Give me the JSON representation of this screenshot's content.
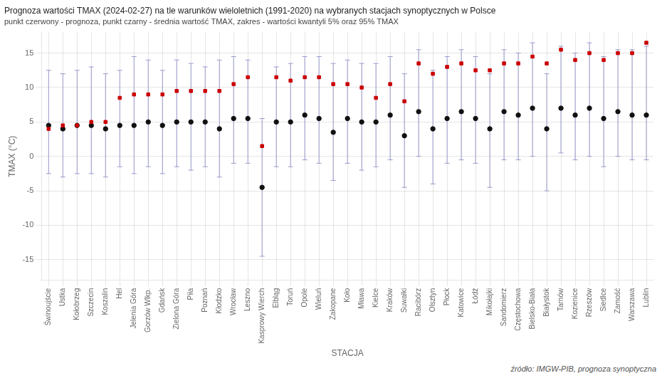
{
  "chart_data": {
    "type": "scatter",
    "title": "Prognoza wartości TMAX (2024-02-27) na tle warunków wieloletnich (1991-2020) na wybranych stacjach synoptycznych w Polsce",
    "subtitle": "punkt czerwony - prognoza, punkt czarny - średnia wartość TMAX, zakres - wartości kwantyli 5% oraz 95% TMAX",
    "xlabel": "STACJA",
    "ylabel": "TMAX (°C)",
    "source": "źródło: IMGW-PIB, prognoza synoptyczna",
    "categories": [
      "Świnoujście",
      "Ustka",
      "Kołobrzeg",
      "Szczecin",
      "Koszalin",
      "Hel",
      "Jelenia Góra",
      "Gorzów Wlkp.",
      "Gdańsk",
      "Zielona Góra",
      "Piła",
      "Poznań",
      "Kłodzko",
      "Wrocław",
      "Leszno",
      "Kasprowy Wierch",
      "Elbląg",
      "Toruń",
      "Opole",
      "Wieluń",
      "Zakopane",
      "Koło",
      "Mława",
      "Kielce",
      "Kraków",
      "Suwałki",
      "Racibórz",
      "Olsztyn",
      "Płock",
      "Katowice",
      "Łódź",
      "Mikołajki",
      "Sandomierz",
      "Częstochowa",
      "Bielsko-Biała",
      "Białystok",
      "Tarnów",
      "Kozienice",
      "Rzeszów",
      "Siedlce",
      "Zamość",
      "Warszawa",
      "Lublin"
    ],
    "series": [
      {
        "color": "#111111",
        "marker": "circle",
        "values": [
          4.5,
          4.0,
          4.5,
          4.5,
          4.0,
          4.5,
          4.5,
          5.0,
          4.5,
          5.0,
          5.0,
          5.0,
          4.0,
          5.5,
          5.5,
          -4.5,
          5.0,
          5.0,
          6.0,
          5.5,
          3.5,
          5.5,
          5.0,
          5.0,
          6.0,
          3.0,
          6.5,
          4.0,
          5.5,
          6.5,
          5.5,
          4.0,
          6.5,
          6.0,
          7.0,
          4.0,
          7.0,
          6.0,
          7.0,
          5.5,
          6.5,
          6.0,
          6.0
        ]
      },
      {
        "color": "#cc0000",
        "marker": "square",
        "values": [
          4.0,
          4.5,
          4.5,
          5.0,
          5.0,
          8.5,
          9.0,
          9.0,
          9.0,
          9.5,
          9.5,
          9.5,
          9.5,
          10.5,
          11.5,
          1.5,
          11.5,
          11.0,
          11.5,
          11.5,
          10.5,
          10.5,
          10.0,
          8.5,
          10.5,
          8.0,
          13.5,
          12.0,
          13.0,
          13.5,
          12.5,
          12.5,
          13.5,
          13.5,
          14.5,
          13.5,
          15.5,
          14.0,
          15.0,
          14.0,
          15.0,
          15.0,
          16.5
        ]
      }
    ],
    "error_bars": {
      "color": "#9999cc",
      "low": [
        -2.5,
        -3.0,
        -2.5,
        -2.5,
        -3.0,
        -1.5,
        -2.5,
        -1.5,
        -2.5,
        -1.5,
        -2.0,
        -1.5,
        -3.0,
        -1.0,
        -1.0,
        -14.5,
        -1.5,
        -1.5,
        -0.5,
        -1.0,
        -3.5,
        -1.0,
        -2.0,
        -1.5,
        -0.5,
        -4.5,
        0.0,
        -4.0,
        -1.0,
        -0.5,
        -1.0,
        -4.5,
        -0.5,
        -0.5,
        0.0,
        -5.0,
        0.5,
        -0.5,
        0.0,
        -1.5,
        0.0,
        -0.5,
        -0.5
      ],
      "high": [
        12.5,
        12.0,
        12.5,
        13.0,
        12.0,
        12.5,
        14.5,
        14.0,
        12.5,
        14.0,
        13.5,
        13.0,
        14.0,
        14.5,
        14.0,
        5.5,
        13.0,
        13.5,
        14.5,
        14.5,
        13.5,
        14.0,
        13.5,
        13.5,
        14.5,
        12.0,
        15.5,
        12.5,
        14.5,
        15.5,
        14.5,
        12.0,
        15.5,
        15.0,
        16.5,
        12.0,
        16.0,
        15.0,
        16.5,
        14.5,
        15.5,
        15.5,
        16.0
      ]
    },
    "ylim": [
      -18,
      18
    ],
    "yticks": [
      -15,
      -10,
      -5,
      0,
      5,
      10,
      15
    ],
    "grid": true
  }
}
